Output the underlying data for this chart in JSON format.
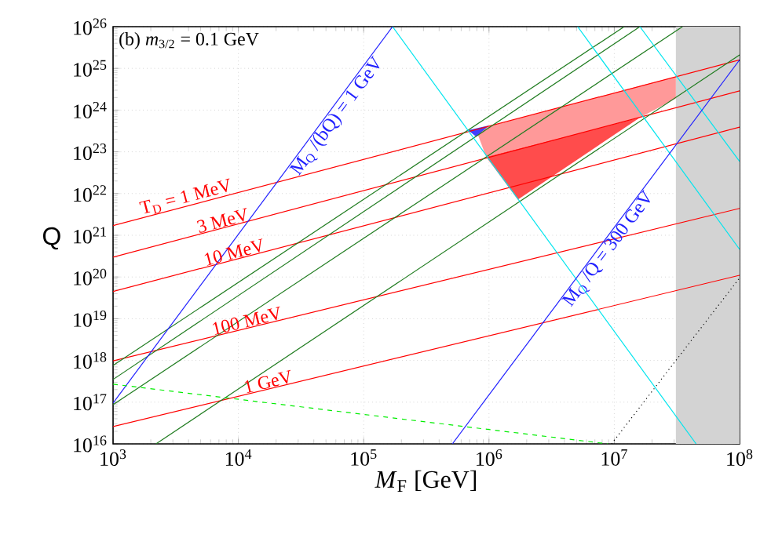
{
  "chart_data": {
    "type": "line",
    "log": "xy",
    "grid": true,
    "marker": "none",
    "xlabel": "*M*$_{F}$ [GeV]",
    "ylabel": "Q",
    "xlim": [
      1000,
      100000000
    ],
    "ylim": [
      1e+16,
      1e+26
    ],
    "xticks": [
      {
        "value": 1000,
        "label": "10$^{3}$"
      },
      {
        "value": 10000,
        "label": "10$^{4}$"
      },
      {
        "value": 100000,
        "label": "10$^{5}$"
      },
      {
        "value": 1000000,
        "label": "10$^{6}$"
      },
      {
        "value": 10000000,
        "label": "10$^{7}$"
      },
      {
        "value": 100000000,
        "label": "10$^{8}$"
      }
    ],
    "yticks": [
      {
        "value": 1e+16,
        "label": "10$^{16}$"
      },
      {
        "value": 1e+17,
        "label": "10$^{17}$"
      },
      {
        "value": 1e+18,
        "label": "10$^{18}$"
      },
      {
        "value": 1e+19,
        "label": "10$^{19}$"
      },
      {
        "value": 1e+20,
        "label": "10$^{20}$"
      },
      {
        "value": 1e+21,
        "label": "10$^{21}$"
      },
      {
        "value": 1e+22,
        "label": "10$^{22}$"
      },
      {
        "value": 1e+23,
        "label": "10$^{23}$"
      },
      {
        "value": 1e+24,
        "label": "10$^{24}$"
      },
      {
        "value": 1e+25,
        "label": "10$^{25}$"
      },
      {
        "value": 1e+26,
        "label": "10$^{26}$"
      }
    ],
    "annotations": [
      "(b) *m*$_{3/2}$ = 0.1 GeV"
    ],
    "bands": [
      {
        "axis": "x",
        "from": 31000000,
        "to": 100000000,
        "color": "#d3d3d3"
      }
    ],
    "series": [
      {
        "type": "area",
        "color": "#ff9999",
        "x": [
          790000,
          950000,
          16000000,
          31000000,
          31000000,
          16000000,
          950000
        ],
        "values": [
          3.3e+23,
          3.9e+23,
          3.8e+24,
          6.3e+24,
          1.9e+24,
          6.6e+23,
          7.6e+22
        ]
      },
      {
        "type": "area",
        "color": "#ff4c4c",
        "x": [
          950000,
          16000000,
          1700000
        ],
        "values": [
          7.6e+22,
          6.6e+23,
          7.2e+21
        ]
      },
      {
        "type": "area",
        "color": "#4040ff",
        "x": [
          680000,
          1000000,
          790000
        ],
        "values": [
          3.3e+23,
          4.3e+23,
          2.3e+23
        ]
      },
      {
        "name": "T$_{D}$ = 1 MeV",
        "color": "#ff0000",
        "x": [
          1000,
          100000000
        ],
        "values": [
          1.7e+21,
          1.6e+25
        ]
      },
      {
        "name": "3 MeV",
        "color": "#ff0000",
        "x": [
          1000,
          100000000
        ],
        "values": [
          3e+20,
          2.9e+24
        ]
      },
      {
        "name": "10 MeV",
        "color": "#ff0000",
        "x": [
          1000,
          100000000
        ],
        "values": [
          4.5e+19,
          3.9e+23
        ]
      },
      {
        "name": "100 MeV",
        "color": "#ff0000",
        "x": [
          1000,
          100000000
        ],
        "values": [
          9.8e+17,
          4.4e+21
        ]
      },
      {
        "name": "1 GeV",
        "color": "#ff0000",
        "x": [
          1000,
          100000000
        ],
        "values": [
          2.6e+16,
          1.1e+20
        ]
      },
      {
        "color": "#1e7b1e",
        "x": [
          1000,
          12000000
        ],
        "values": [
          7.6e+17,
          1e+26
        ]
      },
      {
        "color": "#1e7b1e",
        "x": [
          1000,
          16000000
        ],
        "values": [
          3.5e+17,
          1e+26
        ]
      },
      {
        "color": "#1e7b1e",
        "x": [
          1000,
          35000000
        ],
        "values": [
          8.7e+16,
          1e+26
        ]
      },
      {
        "color": "#1e7b1e",
        "x": [
          2200,
          100000000
        ],
        "values": [
          1e+16,
          2.1e+25
        ]
      },
      {
        "color": "#00e5ee",
        "x": [
          170000,
          45000000
        ],
        "values": [
          1e+26,
          1e+16
        ]
      },
      {
        "color": "#00e5ee",
        "x": [
          5100000,
          100000000
        ],
        "values": [
          1e+26,
          4.6e+20
        ]
      },
      {
        "color": "#00e5ee",
        "x": [
          16000000,
          100000000
        ],
        "values": [
          1e+26,
          5.9e+22
        ]
      },
      {
        "name": "M$_{Q}$ /(bQ) = 1 GeV",
        "color": "#2020ff",
        "x": [
          1000,
          170000
        ],
        "values": [
          9.5e+16,
          1e+26
        ]
      },
      {
        "name": "M$_{Q}$ /Q = 300 GeV",
        "color": "#2020ff",
        "x": [
          510000,
          100000000
        ],
        "values": [
          1e+16,
          1.6e+25
        ]
      },
      {
        "color": "#00ee00",
        "line_style": "dashed",
        "x": [
          1000,
          8900000
        ],
        "values": [
          2.7e+17,
          1e+16
        ]
      },
      {
        "color": "#000000",
        "line_style": "dotted",
        "x": [
          9500000,
          100000000
        ],
        "values": [
          1e+16,
          9.5e+19
        ]
      }
    ]
  }
}
